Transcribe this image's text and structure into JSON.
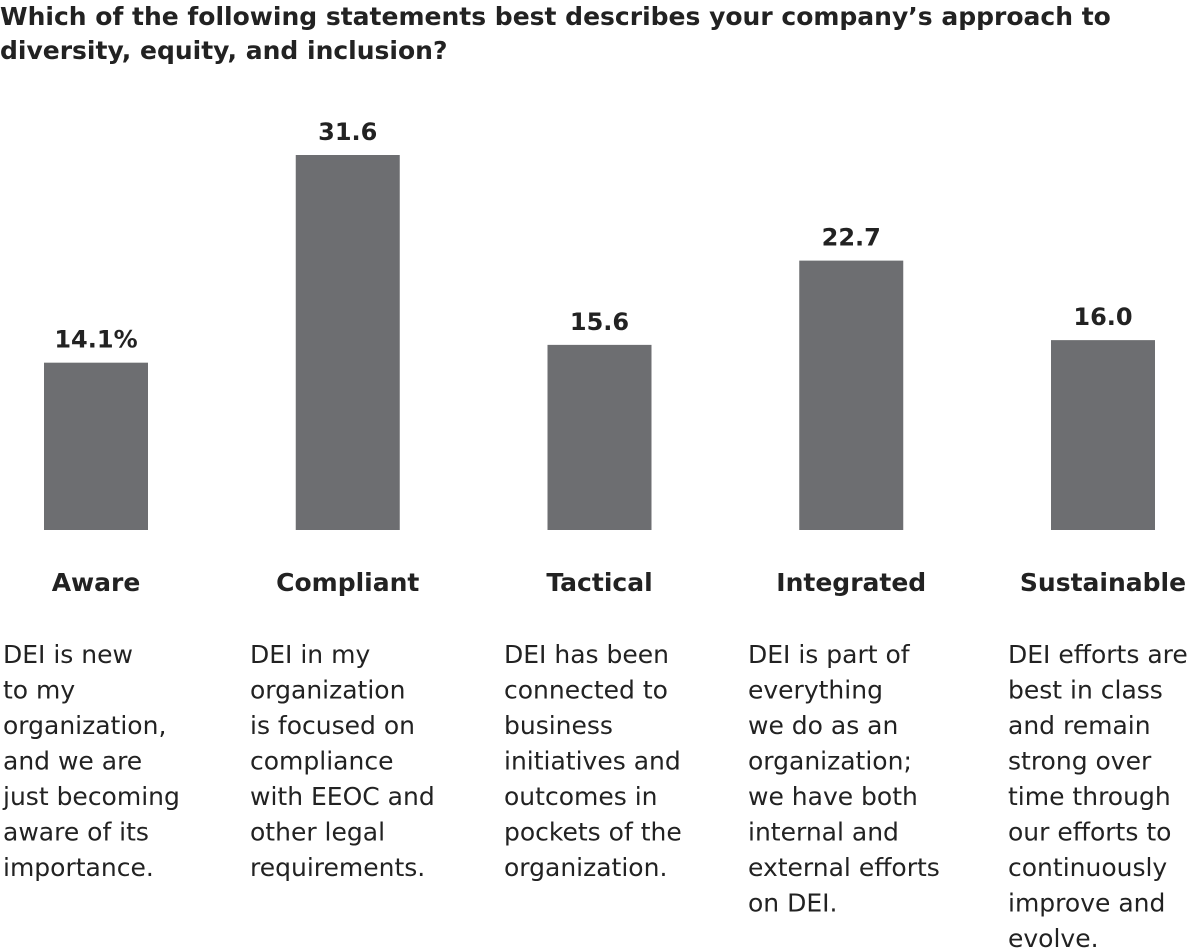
{
  "chart_data": {
    "type": "bar",
    "title": "Which of the following statements best describes your company’s approach to diversity, equity, and inclusion?",
    "categories": [
      "Aware",
      "Compliant",
      "Tactical",
      "Integrated",
      "Sustainable"
    ],
    "values": [
      14.1,
      31.6,
      15.6,
      22.7,
      16.0
    ],
    "value_labels": [
      "14.1%",
      "31.6",
      "15.6",
      "22.7",
      "16.0"
    ],
    "color": "#6d6e71",
    "descriptions": [
      [
        "DEI is new",
        "to my",
        "organization,",
        "and we are",
        "just becoming",
        "aware of its",
        "importance."
      ],
      [
        "DEI in my",
        "organization",
        "is focused on",
        "compliance",
        "with EEOC and",
        "other legal",
        "requirements."
      ],
      [
        "DEI has been",
        "connected to",
        "business",
        "initiatives and",
        "outcomes in",
        "pockets of the",
        "organization."
      ],
      [
        "DEI is part of",
        "everything",
        "we do as an",
        "organization;",
        "we have both",
        "internal and",
        "external efforts",
        "on DEI."
      ],
      [
        "DEI efforts are",
        "best in class",
        "and remain",
        "strong over",
        "time through",
        "our efforts to",
        "continuously",
        "improve and",
        "evolve."
      ]
    ]
  }
}
